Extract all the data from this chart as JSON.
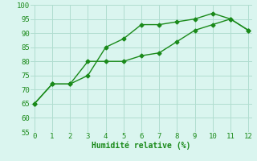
{
  "line1_x": [
    0,
    1,
    2,
    3,
    4,
    5,
    6,
    7,
    8,
    9,
    10,
    11,
    12
  ],
  "line1_y": [
    65,
    72,
    72,
    75,
    85,
    88,
    93,
    93,
    94,
    95,
    97,
    95,
    91
  ],
  "line2_x": [
    0,
    1,
    2,
    3,
    4,
    5,
    6,
    7,
    8,
    9,
    10,
    11,
    12
  ],
  "line2_y": [
    65,
    72,
    72,
    80,
    80,
    80,
    82,
    83,
    87,
    91,
    93,
    95,
    91
  ],
  "line_color": "#1a8a1a",
  "bg_color": "#daf5ef",
  "grid_color": "#b0ddd0",
  "xlabel": "Humidité relative (%)",
  "xlim": [
    -0.2,
    12.2
  ],
  "ylim": [
    55,
    100
  ],
  "xticks": [
    0,
    1,
    2,
    3,
    4,
    5,
    6,
    7,
    8,
    9,
    10,
    11,
    12
  ],
  "yticks": [
    55,
    60,
    65,
    70,
    75,
    80,
    85,
    90,
    95,
    100
  ],
  "marker": "D",
  "markersize": 2.5,
  "linewidth": 1.0,
  "xlabel_fontsize": 7,
  "tick_fontsize": 6.5,
  "tick_color": "#1a8a1a",
  "xlabel_color": "#1a8a1a"
}
